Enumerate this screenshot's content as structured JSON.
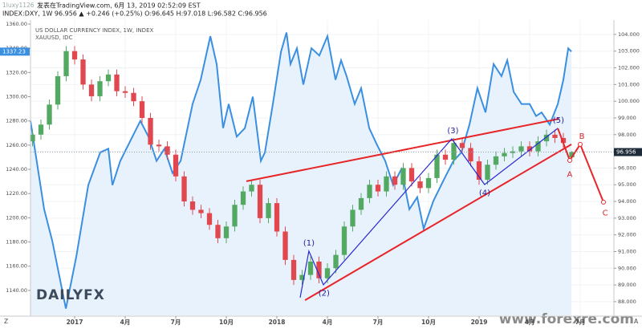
{
  "header": {
    "watermark": "1luxy1126",
    "published": "发表在TradingView.com, 6月 13, 2019 02:52:09 EST",
    "symbol_line": "INDEX:DXY, 1W 96.956 ▲ +0.246 (+0.25%) O:96.645 H:97.018 L:96.582 C:96.956"
  },
  "logo": "DAILYFX",
  "site": "www.forexre.com",
  "toolbar": {
    "left": "Z",
    "right": "A"
  },
  "chart_data": {
    "type": "candlestick",
    "xlim": [
      -2.62,
      32
    ],
    "xticks": [
      {
        "value": 0,
        "label": "2017"
      },
      {
        "value": 3,
        "label": "4月"
      },
      {
        "value": 6,
        "label": "7月"
      },
      {
        "value": 9,
        "label": "10月"
      },
      {
        "value": 12,
        "label": "2018"
      },
      {
        "value": 15,
        "label": "4月"
      },
      {
        "value": 18,
        "label": "7月"
      },
      {
        "value": 21,
        "label": "10月"
      },
      {
        "value": 24,
        "label": "2019"
      },
      {
        "value": 27,
        "label": "4月"
      },
      {
        "value": 30,
        "label": "7月"
      }
    ],
    "ylim": [
      1119.4,
      1363.3
    ],
    "yticks": [
      {
        "value": 1140,
        "label": "1140.00"
      },
      {
        "value": 1160,
        "label": "1160.00"
      },
      {
        "value": 1180,
        "label": "1180.00"
      },
      {
        "value": 1200,
        "label": "1200.00"
      },
      {
        "value": 1220,
        "label": "1220.00"
      },
      {
        "value": 1240,
        "label": "1240.00"
      },
      {
        "value": 1260,
        "label": "1260.00"
      },
      {
        "value": 1280,
        "label": "1280.00"
      },
      {
        "value": 1300,
        "label": "1300.00"
      },
      {
        "value": 1320,
        "label": "1320.00"
      },
      {
        "value": 1340,
        "label": "1340.00"
      },
      {
        "value": 1360,
        "label": "1360.00"
      }
    ],
    "y2lim": [
      87.18,
      104.86
    ],
    "y2ticks": [
      {
        "value": 88,
        "label": "88.000"
      },
      {
        "value": 89,
        "label": "89.000"
      },
      {
        "value": 90,
        "label": "90.000"
      },
      {
        "value": 91,
        "label": "91.000"
      },
      {
        "value": 92,
        "label": "92.000"
      },
      {
        "value": 93,
        "label": "93.000"
      },
      {
        "value": 94,
        "label": "94.000"
      },
      {
        "value": 95,
        "label": "95.000"
      },
      {
        "value": 96,
        "label": "96.000"
      },
      {
        "value": 97,
        "label": "97.000"
      },
      {
        "value": 98,
        "label": "98.000"
      },
      {
        "value": 99,
        "label": "99.000"
      },
      {
        "value": 100,
        "label": "100.000"
      },
      {
        "value": 101,
        "label": "101.000"
      },
      {
        "value": 102,
        "label": "102.000"
      },
      {
        "value": 103,
        "label": "103.000"
      },
      {
        "value": 104,
        "label": "104.000"
      }
    ],
    "grid": true,
    "series": [
      {
        "name": "US DOLLAR CURRENCY INDEX, 1W, INDEX",
        "type": "candlestick",
        "axis": "y2",
        "up_color": "#53a862",
        "down_color": "#e0474f",
        "last_color": "#1e2b3a",
        "x": [
          -2.5,
          -2,
          -1.5,
          -1,
          -0.5,
          0,
          0.5,
          1,
          1.5,
          2,
          2.5,
          3,
          3.5,
          4,
          4.5,
          5,
          5.5,
          6,
          6.5,
          7,
          7.5,
          8,
          8.5,
          9,
          9.5,
          10,
          10.5,
          11,
          11.5,
          12,
          12.5,
          13,
          13.5,
          14,
          14.5,
          15,
          15.5,
          16,
          16.5,
          17,
          17.5,
          18,
          18.5,
          19,
          19.5,
          20,
          20.5,
          21,
          21.5,
          22,
          22.5,
          23,
          23.5,
          24,
          24.5,
          25,
          25.5,
          26,
          26.5,
          27,
          27.5,
          28,
          28.5,
          29,
          29.5
        ],
        "open": [
          97.6,
          98.0,
          98.6,
          99.8,
          101.5,
          103.0,
          102.5,
          101.0,
          100.3,
          101.2,
          101.6,
          100.6,
          100.5,
          100.0,
          99.0,
          97.4,
          97.3,
          96.8,
          95.5,
          94.0,
          93.5,
          93.3,
          92.6,
          91.8,
          92.5,
          93.8,
          94.6,
          95.0,
          93.0,
          93.9,
          92.2,
          90.5,
          89.3,
          89.6,
          90.4,
          89.4,
          90.0,
          90.8,
          92.5,
          93.5,
          94.2,
          95.0,
          94.6,
          95.5,
          95.0,
          96.0,
          95.2,
          94.8,
          95.4,
          96.8,
          96.5,
          97.5,
          97.2,
          96.4,
          95.3,
          96.2,
          96.7,
          96.9,
          97.0,
          97.3,
          97.0,
          97.6,
          98.0,
          97.8,
          96.645
        ],
        "high": [
          98.3,
          98.9,
          100.1,
          101.8,
          103.3,
          103.3,
          102.8,
          101.3,
          101.5,
          101.9,
          101.9,
          100.9,
          100.8,
          100.3,
          99.3,
          97.7,
          97.6,
          97.1,
          95.8,
          94.3,
          93.8,
          93.6,
          92.9,
          92.8,
          94.1,
          94.9,
          95.3,
          95.3,
          94.2,
          94.2,
          92.5,
          90.8,
          89.9,
          90.7,
          90.7,
          90.3,
          91.1,
          92.8,
          93.8,
          94.5,
          95.3,
          95.3,
          95.8,
          95.8,
          96.3,
          96.3,
          95.5,
          95.7,
          97.1,
          97.1,
          97.8,
          97.8,
          97.5,
          96.7,
          96.5,
          97.0,
          97.2,
          97.3,
          97.6,
          97.6,
          97.9,
          98.3,
          98.3,
          98.1,
          97.018
        ],
        "low": [
          97.3,
          97.7,
          98.3,
          99.5,
          101.2,
          102.2,
          100.7,
          100.0,
          100.0,
          100.9,
          100.3,
          100.2,
          99.7,
          98.7,
          97.1,
          97.0,
          96.5,
          95.2,
          93.7,
          93.2,
          93.0,
          92.3,
          91.5,
          91.5,
          92.2,
          93.5,
          94.3,
          92.7,
          92.7,
          91.9,
          90.2,
          89.0,
          89.0,
          89.3,
          89.1,
          89.1,
          89.7,
          90.5,
          92.2,
          93.2,
          93.9,
          94.3,
          94.3,
          94.7,
          94.7,
          94.9,
          94.5,
          94.5,
          95.1,
          96.2,
          96.2,
          96.9,
          96.1,
          95.0,
          95.0,
          95.9,
          96.4,
          96.6,
          96.7,
          96.7,
          96.7,
          97.3,
          97.5,
          97.2,
          96.582
        ],
        "close": [
          98.0,
          98.6,
          99.8,
          101.5,
          103.0,
          102.5,
          101.0,
          100.3,
          101.2,
          101.6,
          100.6,
          100.5,
          100.0,
          99.0,
          97.4,
          97.3,
          96.8,
          95.5,
          94.0,
          93.5,
          93.3,
          92.6,
          91.8,
          92.5,
          93.8,
          94.6,
          95.0,
          93.0,
          93.9,
          92.2,
          90.5,
          89.3,
          89.6,
          90.4,
          89.4,
          90.0,
          90.8,
          92.5,
          93.5,
          94.2,
          95.0,
          94.6,
          95.5,
          95.0,
          96.0,
          95.2,
          94.8,
          95.4,
          96.8,
          96.5,
          97.5,
          97.2,
          96.4,
          95.3,
          96.2,
          96.7,
          96.9,
          97.0,
          97.3,
          97.0,
          97.6,
          98.0,
          97.8,
          97.5,
          96.956
        ]
      },
      {
        "name": "XAUUSD, IDC",
        "type": "line",
        "axis": "y",
        "color": "#3a8fe0",
        "fill": "#e8f2fc",
        "x": [
          -2.62,
          -1.81,
          -1.33,
          -0.52,
          0.1,
          0.81,
          1.52,
          2.0,
          2.24,
          2.71,
          3.43,
          3.9,
          4.38,
          4.86,
          5.33,
          5.81,
          6.29,
          7.0,
          7.48,
          8.05,
          8.43,
          8.81,
          9.14,
          9.62,
          10.1,
          10.57,
          11.05,
          11.29,
          11.76,
          12.24,
          12.57,
          12.81,
          13.19,
          13.57,
          14.05,
          14.52,
          15.0,
          15.48,
          15.81,
          16.14,
          16.62,
          17.0,
          17.48,
          17.95,
          18.43,
          18.9,
          19.38,
          19.86,
          20.33,
          20.71,
          21.29,
          22.0,
          22.48,
          22.95,
          23.43,
          23.9,
          24.38,
          24.86,
          25.33,
          25.67,
          26.05,
          26.52,
          27.0,
          27.38,
          27.71,
          28.19,
          28.67,
          29.0,
          29.29,
          29.48
        ],
        "values": [
          1280,
          1207,
          1181,
          1125,
          1168,
          1227,
          1254,
          1257,
          1227,
          1247,
          1267,
          1280,
          1267,
          1247,
          1257,
          1237,
          1247,
          1294,
          1314,
          1350,
          1327,
          1274,
          1294,
          1267,
          1274,
          1300,
          1247,
          1254,
          1294,
          1337,
          1353,
          1327,
          1340,
          1310,
          1340,
          1334,
          1350,
          1314,
          1330,
          1317,
          1294,
          1307,
          1274,
          1260,
          1247,
          1227,
          1240,
          1207,
          1217,
          1191,
          1214,
          1234,
          1247,
          1254,
          1277,
          1307,
          1287,
          1327,
          1317,
          1330,
          1304,
          1294,
          1294,
          1284,
          1287,
          1277,
          1294,
          1314,
          1340,
          1337.23
        ]
      }
    ],
    "annotations": {
      "wedge": {
        "color": "#e8262a",
        "lines": [
          {
            "x": [
              10.19,
              28.76
            ],
            "y": [
              95.21,
              98.95
            ]
          },
          {
            "x": [
              13.67,
              29.48
            ],
            "y": [
              88.09,
              97.42
            ]
          }
        ]
      },
      "wave": {
        "color": "#2a2ad0",
        "x": [
          13.38,
          13.9,
          14.76,
          22.38,
          24.33,
          28.67
        ],
        "y": [
          88.24,
          91.03,
          89.01,
          97.75,
          95.01,
          98.38
        ]
      },
      "projection": {
        "color": "#e8262a",
        "x": [
          28.67,
          29.38,
          30.0,
          31.38
        ],
        "y": [
          98.38,
          96.46,
          97.42,
          93.96
        ]
      },
      "labels": [
        {
          "text": "(1)",
          "x": 13.9,
          "y": 91.5,
          "color": "#1e1e9c"
        },
        {
          "text": "(2)",
          "x": 14.8,
          "y": 88.5,
          "color": "#1e1e9c"
        },
        {
          "text": "(3)",
          "x": 22.45,
          "y": 98.23,
          "color": "#1e1e9c"
        },
        {
          "text": "(4)",
          "x": 24.33,
          "y": 94.5,
          "color": "#1e1e9c"
        },
        {
          "text": "(5)",
          "x": 28.71,
          "y": 98.86,
          "color": "#1e1e9c"
        },
        {
          "text": "A",
          "x": 29.38,
          "y": 95.6,
          "color": "#d8262a"
        },
        {
          "text": "B",
          "x": 30.1,
          "y": 97.9,
          "color": "#d8262a"
        },
        {
          "text": "C",
          "x": 31.48,
          "y": 93.3,
          "color": "#d8262a"
        }
      ]
    }
  }
}
